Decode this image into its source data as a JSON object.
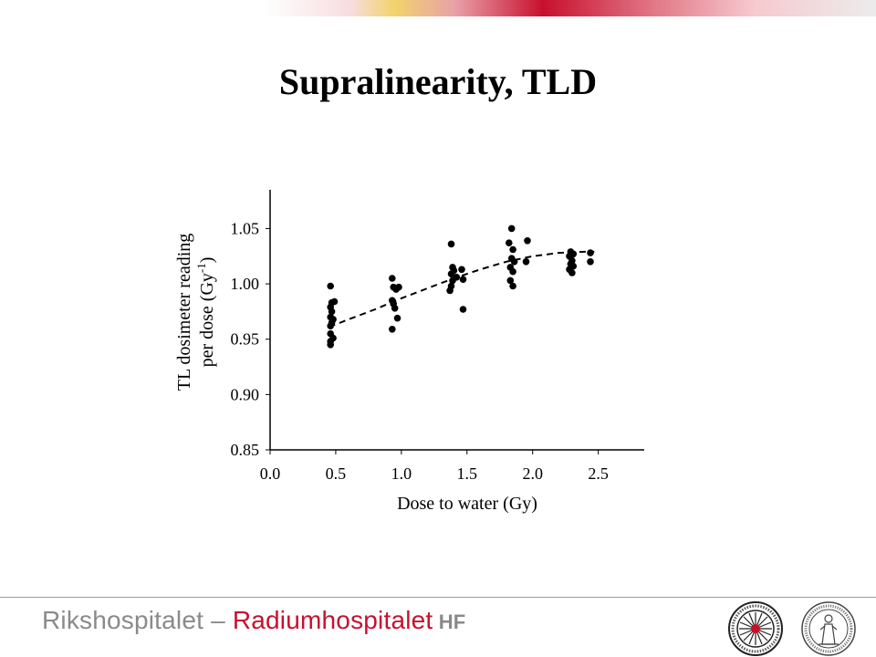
{
  "slide": {
    "title": "Supralinearity, TLD",
    "accent_colors": [
      "#c8102e",
      "#e8a0a8",
      "#f2d36b",
      "#f6c9ce",
      "#d9d9d9"
    ]
  },
  "footer": {
    "brand_part1": "Rikshospitalet – ",
    "brand_part2": "Radiumhospitalet",
    "brand_part3": " HF",
    "brand_gray": "#8a8a8a",
    "brand_red": "#c8102e",
    "seal_left_icon": "radium-hospital-seal-icon",
    "seal_right_icon": "university-oslo-seal-icon"
  },
  "chart_data": {
    "type": "scatter",
    "xlabel": "Dose to water (Gy)",
    "ylabel_line1": "TL dosimeter reading",
    "ylabel_line2_prefix": "per dose (Gy",
    "ylabel_line2_sup": "-1",
    "ylabel_line2_suffix": ")",
    "xlim": [
      0,
      2.85
    ],
    "ylim": [
      0.85,
      1.085
    ],
    "x_ticks": [
      0.0,
      0.5,
      1.0,
      1.5,
      2.0,
      2.5
    ],
    "x_tick_labels": [
      "0.0",
      "0.5",
      "1.0",
      "1.5",
      "2.0",
      "2.5"
    ],
    "y_ticks": [
      0.85,
      0.9,
      0.95,
      1.0,
      1.05
    ],
    "y_tick_labels": [
      "0.85",
      "0.90",
      "0.95",
      "1.00",
      "1.05"
    ],
    "grid": false,
    "points": [
      [
        0.46,
        0.998
      ],
      [
        0.47,
        0.983
      ],
      [
        0.49,
        0.984
      ],
      [
        0.46,
        0.979
      ],
      [
        0.47,
        0.975
      ],
      [
        0.46,
        0.97
      ],
      [
        0.48,
        0.968
      ],
      [
        0.47,
        0.965
      ],
      [
        0.46,
        0.962
      ],
      [
        0.46,
        0.955
      ],
      [
        0.48,
        0.951
      ],
      [
        0.46,
        0.948
      ],
      [
        0.46,
        0.945
      ],
      [
        0.93,
        1.005
      ],
      [
        0.94,
        0.997
      ],
      [
        0.96,
        0.995
      ],
      [
        0.98,
        0.997
      ],
      [
        0.93,
        0.985
      ],
      [
        0.94,
        0.982
      ],
      [
        0.95,
        0.978
      ],
      [
        0.97,
        0.969
      ],
      [
        0.93,
        0.959
      ],
      [
        1.38,
        1.036
      ],
      [
        1.39,
        1.015
      ],
      [
        1.4,
        1.012
      ],
      [
        1.38,
        1.009
      ],
      [
        1.42,
        1.006
      ],
      [
        1.39,
        1.003
      ],
      [
        1.38,
        0.998
      ],
      [
        1.37,
        0.994
      ],
      [
        1.46,
        1.013
      ],
      [
        1.47,
        1.004
      ],
      [
        1.47,
        0.977
      ],
      [
        1.84,
        1.05
      ],
      [
        1.82,
        1.037
      ],
      [
        1.85,
        1.031
      ],
      [
        1.84,
        1.023
      ],
      [
        1.86,
        1.02
      ],
      [
        1.83,
        1.015
      ],
      [
        1.85,
        1.011
      ],
      [
        1.83,
        1.003
      ],
      [
        1.85,
        0.998
      ],
      [
        1.96,
        1.039
      ],
      [
        1.95,
        1.02
      ],
      [
        2.29,
        1.029
      ],
      [
        2.31,
        1.027
      ],
      [
        2.28,
        1.025
      ],
      [
        2.3,
        1.021
      ],
      [
        2.29,
        1.018
      ],
      [
        2.31,
        1.016
      ],
      [
        2.28,
        1.013
      ],
      [
        2.3,
        1.01
      ],
      [
        2.44,
        1.028
      ],
      [
        2.44,
        1.02
      ]
    ],
    "fit_curve": {
      "style": "dashed",
      "x": [
        0.45,
        0.6,
        0.8,
        1.0,
        1.2,
        1.4,
        1.6,
        1.8,
        2.0,
        2.2,
        2.4,
        2.47
      ],
      "y": [
        0.961,
        0.968,
        0.977,
        0.987,
        0.996,
        1.005,
        1.013,
        1.02,
        1.025,
        1.028,
        1.029,
        1.029
      ]
    }
  }
}
